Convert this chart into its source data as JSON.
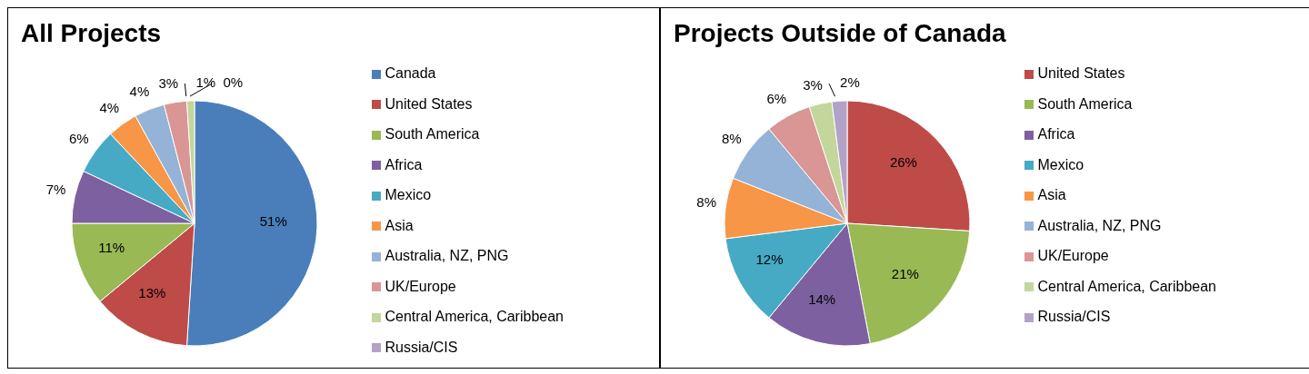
{
  "chart_data": [
    {
      "type": "pie",
      "title": "All Projects",
      "legend": "right",
      "categories": [
        "Canada",
        "United States",
        "South America",
        "Africa",
        "Mexico",
        "Asia",
        "Australia, NZ, PNG",
        "UK/Europe",
        "Central America, Caribbean",
        "Russia/CIS"
      ],
      "values": [
        51,
        13,
        11,
        7,
        6,
        4,
        4,
        3,
        1,
        0
      ],
      "value_labels": [
        "51%",
        "13%",
        "11%",
        "7%",
        "6%",
        "4%",
        "4%",
        "3%",
        "1%",
        "0%"
      ],
      "colors": [
        "#4a7ebb",
        "#be4b48",
        "#98b954",
        "#7d60a0",
        "#46aac5",
        "#f79646",
        "#95b3d7",
        "#d99694",
        "#c3d69b",
        "#b3a2c7"
      ]
    },
    {
      "type": "pie",
      "title": "Projects Outside of Canada",
      "legend": "right",
      "categories": [
        "United States",
        "South America",
        "Africa",
        "Mexico",
        "Asia",
        "Australia, NZ, PNG",
        "UK/Europe",
        "Central America, Caribbean",
        "Russia/CIS"
      ],
      "values": [
        26,
        21,
        14,
        12,
        8,
        8,
        6,
        3,
        2
      ],
      "value_labels": [
        "26%",
        "21%",
        "14%",
        "12%",
        "8%",
        "8%",
        "6%",
        "3%",
        "2%"
      ],
      "colors": [
        "#be4b48",
        "#98b954",
        "#7d60a0",
        "#46aac5",
        "#f79646",
        "#95b3d7",
        "#d99694",
        "#c3d69b",
        "#b3a2c7"
      ]
    }
  ]
}
